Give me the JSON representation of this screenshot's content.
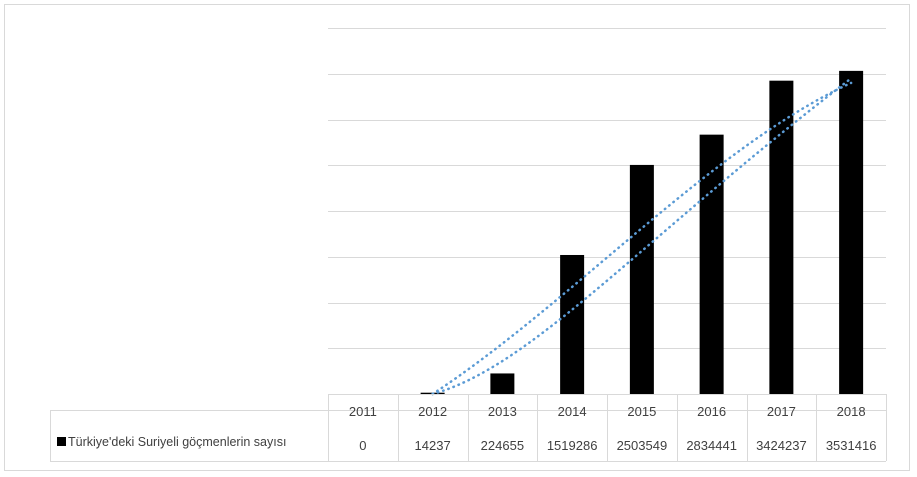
{
  "chart_data": {
    "type": "bar",
    "categories": [
      "2011",
      "2012",
      "2013",
      "2014",
      "2015",
      "2016",
      "2017",
      "2018"
    ],
    "series": [
      {
        "name": "Türkiye'deki Suriyeli göçmenlerin sayısı",
        "values": [
          0,
          14237,
          224655,
          1519286,
          2503549,
          2834441,
          3424237,
          3531416
        ],
        "color": "#000000"
      }
    ],
    "value_labels": [
      "0",
      "14237",
      "224655",
      "1519286",
      "2503549",
      "2834441",
      "3424237",
      "3531416"
    ],
    "trendline": {
      "type": "linear",
      "style": "dotted",
      "color": "#5b9bd5"
    },
    "data_table": true,
    "ylim": [
      0,
      4000000
    ],
    "grid": true,
    "title": "",
    "xlabel": "",
    "ylabel": ""
  }
}
